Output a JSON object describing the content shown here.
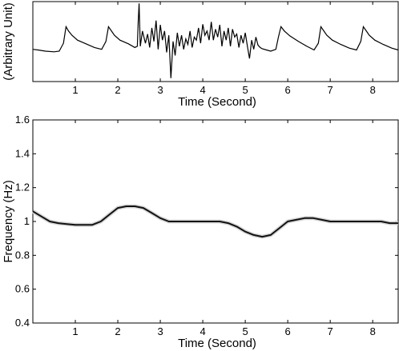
{
  "chart_data": [
    {
      "type": "line",
      "title": "",
      "xlabel": "Time (Second)",
      "ylabel": "(Arbitrary Unit)",
      "xlim": [
        0,
        8.6
      ],
      "x_ticks": [
        "1",
        "2",
        "3",
        "4",
        "5",
        "6",
        "7",
        "8"
      ],
      "y_ticks": [],
      "series": [
        {
          "x": [
            0.0,
            0.12,
            0.3,
            0.5,
            0.62,
            0.72,
            0.78,
            0.84,
            0.92,
            1.05,
            1.25,
            1.45,
            1.62,
            1.72,
            1.78,
            1.84,
            1.92,
            2.05,
            2.25,
            2.4,
            2.46,
            2.48,
            2.5,
            2.53,
            2.58,
            2.65,
            2.7,
            2.75,
            2.8,
            2.85,
            2.9,
            2.95,
            3.0,
            3.05,
            3.1,
            3.15,
            3.2,
            3.25,
            3.3,
            3.35,
            3.4,
            3.45,
            3.5,
            3.55,
            3.6,
            3.65,
            3.7,
            3.75,
            3.8,
            3.85,
            3.9,
            3.95,
            4.0,
            4.05,
            4.1,
            4.15,
            4.2,
            4.25,
            4.3,
            4.35,
            4.4,
            4.45,
            4.5,
            4.55,
            4.6,
            4.65,
            4.7,
            4.75,
            4.8,
            4.85,
            4.9,
            4.95,
            5.0,
            5.05,
            5.1,
            5.15,
            5.2,
            5.25,
            5.3,
            5.35,
            5.4,
            5.5,
            5.6,
            5.72,
            5.78,
            5.84,
            5.92,
            6.05,
            6.25,
            6.45,
            6.62,
            6.72,
            6.78,
            6.84,
            6.92,
            7.05,
            7.25,
            7.45,
            7.62,
            7.72,
            7.78,
            7.84,
            7.92,
            8.05,
            8.25,
            8.45,
            8.6
          ],
          "y": [
            0.25,
            0.24,
            0.22,
            0.21,
            0.22,
            0.35,
            0.62,
            0.55,
            0.48,
            0.4,
            0.34,
            0.28,
            0.25,
            0.38,
            0.62,
            0.56,
            0.48,
            0.4,
            0.34,
            0.28,
            0.3,
            0.7,
            1.0,
            0.3,
            0.55,
            0.35,
            0.5,
            0.28,
            0.6,
            0.38,
            0.72,
            0.25,
            0.65,
            0.4,
            0.55,
            0.2,
            0.48,
            -0.22,
            0.38,
            0.15,
            0.52,
            0.3,
            0.48,
            0.25,
            0.42,
            0.33,
            0.55,
            0.28,
            0.45,
            0.4,
            0.6,
            0.35,
            0.66,
            0.48,
            0.55,
            0.4,
            0.7,
            0.4,
            0.58,
            0.45,
            0.65,
            0.3,
            0.55,
            0.4,
            0.6,
            0.3,
            0.58,
            0.45,
            0.5,
            0.28,
            0.48,
            0.35,
            0.52,
            0.3,
            0.1,
            0.4,
            0.25,
            0.45,
            0.32,
            0.28,
            0.26,
            0.24,
            0.22,
            0.25,
            0.45,
            0.62,
            0.55,
            0.47,
            0.38,
            0.3,
            0.24,
            0.35,
            0.62,
            0.56,
            0.48,
            0.4,
            0.33,
            0.27,
            0.24,
            0.38,
            0.62,
            0.56,
            0.48,
            0.4,
            0.33,
            0.27,
            0.24
          ]
        }
      ]
    },
    {
      "type": "heatmap",
      "title": "",
      "xlabel": "Time (Second)",
      "ylabel": "Frequency (Hz)",
      "xlim": [
        0,
        8.6
      ],
      "ylim": [
        0.4,
        1.6
      ],
      "x_ticks": [
        "1",
        "2",
        "3",
        "4",
        "5",
        "6",
        "7",
        "8"
      ],
      "y_ticks": [
        "0.4",
        "0.6",
        "0.8",
        "1",
        "1.2",
        "1.4",
        "1.6"
      ],
      "series": [
        {
          "x": [
            0.0,
            0.2,
            0.4,
            0.6,
            0.8,
            1.0,
            1.2,
            1.4,
            1.6,
            1.8,
            2.0,
            2.2,
            2.4,
            2.6,
            2.8,
            3.0,
            3.2,
            3.4,
            3.6,
            3.8,
            4.0,
            4.2,
            4.4,
            4.6,
            4.8,
            5.0,
            5.2,
            5.4,
            5.6,
            5.8,
            6.0,
            6.2,
            6.4,
            6.6,
            6.8,
            7.0,
            7.2,
            7.4,
            7.6,
            7.8,
            8.0,
            8.2,
            8.4,
            8.6
          ],
          "y": [
            1.06,
            1.03,
            1.0,
            0.99,
            0.985,
            0.98,
            0.98,
            0.98,
            1.0,
            1.04,
            1.08,
            1.09,
            1.09,
            1.08,
            1.05,
            1.02,
            1.0,
            1.0,
            1.0,
            1.0,
            1.0,
            1.0,
            1.0,
            0.99,
            0.97,
            0.94,
            0.92,
            0.91,
            0.92,
            0.96,
            1.0,
            1.01,
            1.02,
            1.02,
            1.01,
            1.0,
            1.0,
            1.0,
            1.0,
            1.0,
            1.0,
            1.0,
            0.99,
            0.99
          ]
        }
      ]
    }
  ]
}
